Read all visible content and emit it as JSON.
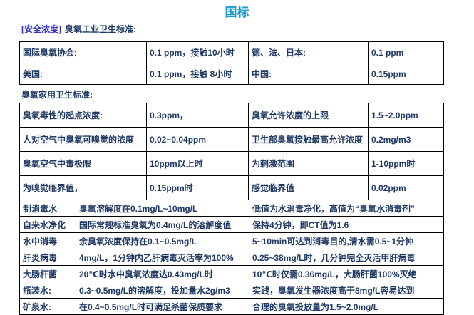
{
  "page_title": {
    "text": "国标"
  },
  "section1": {
    "tag": "[安全浓度]",
    "heading": "臭氧工业卫生标准:"
  },
  "section2": {
    "heading": "臭氧家用卫生标准:"
  },
  "colors": {
    "title_blue": "#1C9AD6",
    "tag_blue": "#3333CC",
    "text_navy": "#1F3864",
    "border": "#000000"
  },
  "table1": {
    "rows": [
      [
        "国际臭氧协会:",
        "0.1 ppm，接触10小时",
        "德、法、日本:",
        "0.1 ppm"
      ],
      [
        "美国:",
        "0.1 ppm，接触 8小时",
        "中国:",
        "0.15ppm"
      ]
    ]
  },
  "table2": {
    "rows": [
      [
        "臭氧毒性的起点浓度:",
        "0.3ppm，",
        "臭氧允许浓度的上限",
        "1.5~2.0ppm"
      ],
      [
        "人对空气中臭氧可嗅觉的浓度",
        "0.02~0.04ppm",
        "卫生部臭氧接触最高允许浓度",
        "0.2mg/m3"
      ],
      [
        "臭氧空气中毒极限",
        "10ppm以上时",
        "为刺激范围",
        "1-10ppm时"
      ],
      [
        "为嗅觉临界值，",
        "0.15ppm时",
        "感觉临界值",
        "0.02ppm"
      ]
    ]
  },
  "table3": {
    "rows": [
      [
        "制消毒水",
        "臭氧溶解度在0.1mg/L~10mg/L",
        "低值为水消毒净化，高值为“臭氧水消毒剂”"
      ],
      [
        "自来水净化",
        "国际常规标准臭氧为0.4mg/L的溶解度值",
        "保持4分钟，即CT值为1.6"
      ],
      [
        "水中消毒",
        "余臭氧浓度保持在0.1~0.5mg/L",
        "5~10min可达到消毒目的,清水需0.5~1分钟"
      ],
      [
        "肝炎病毒",
        "4mg/L，1分钟内乙肝病毒灭活率为100%",
        "0.25~38mg/L时，几分钟完全灭活甲肝病毒"
      ],
      [
        "大肠杆菌",
        "20℃时水中臭氧浓度达0.43mg/L时",
        "10℃时仅需0.36mg/L，大肠肝菌100%灭绝"
      ],
      [
        "瓶装水:",
        "0.3~0.5mg/L的溶解度，投加量水2g/m3",
        "实践，臭氧发生器浓度高于8mg/L容易达到"
      ],
      [
        "矿泉水:",
        "在0.4~0.5mg/L时可满足杀菌保质要求",
        "合理的臭氧投放量为1.5~2.0mg/L"
      ]
    ]
  }
}
